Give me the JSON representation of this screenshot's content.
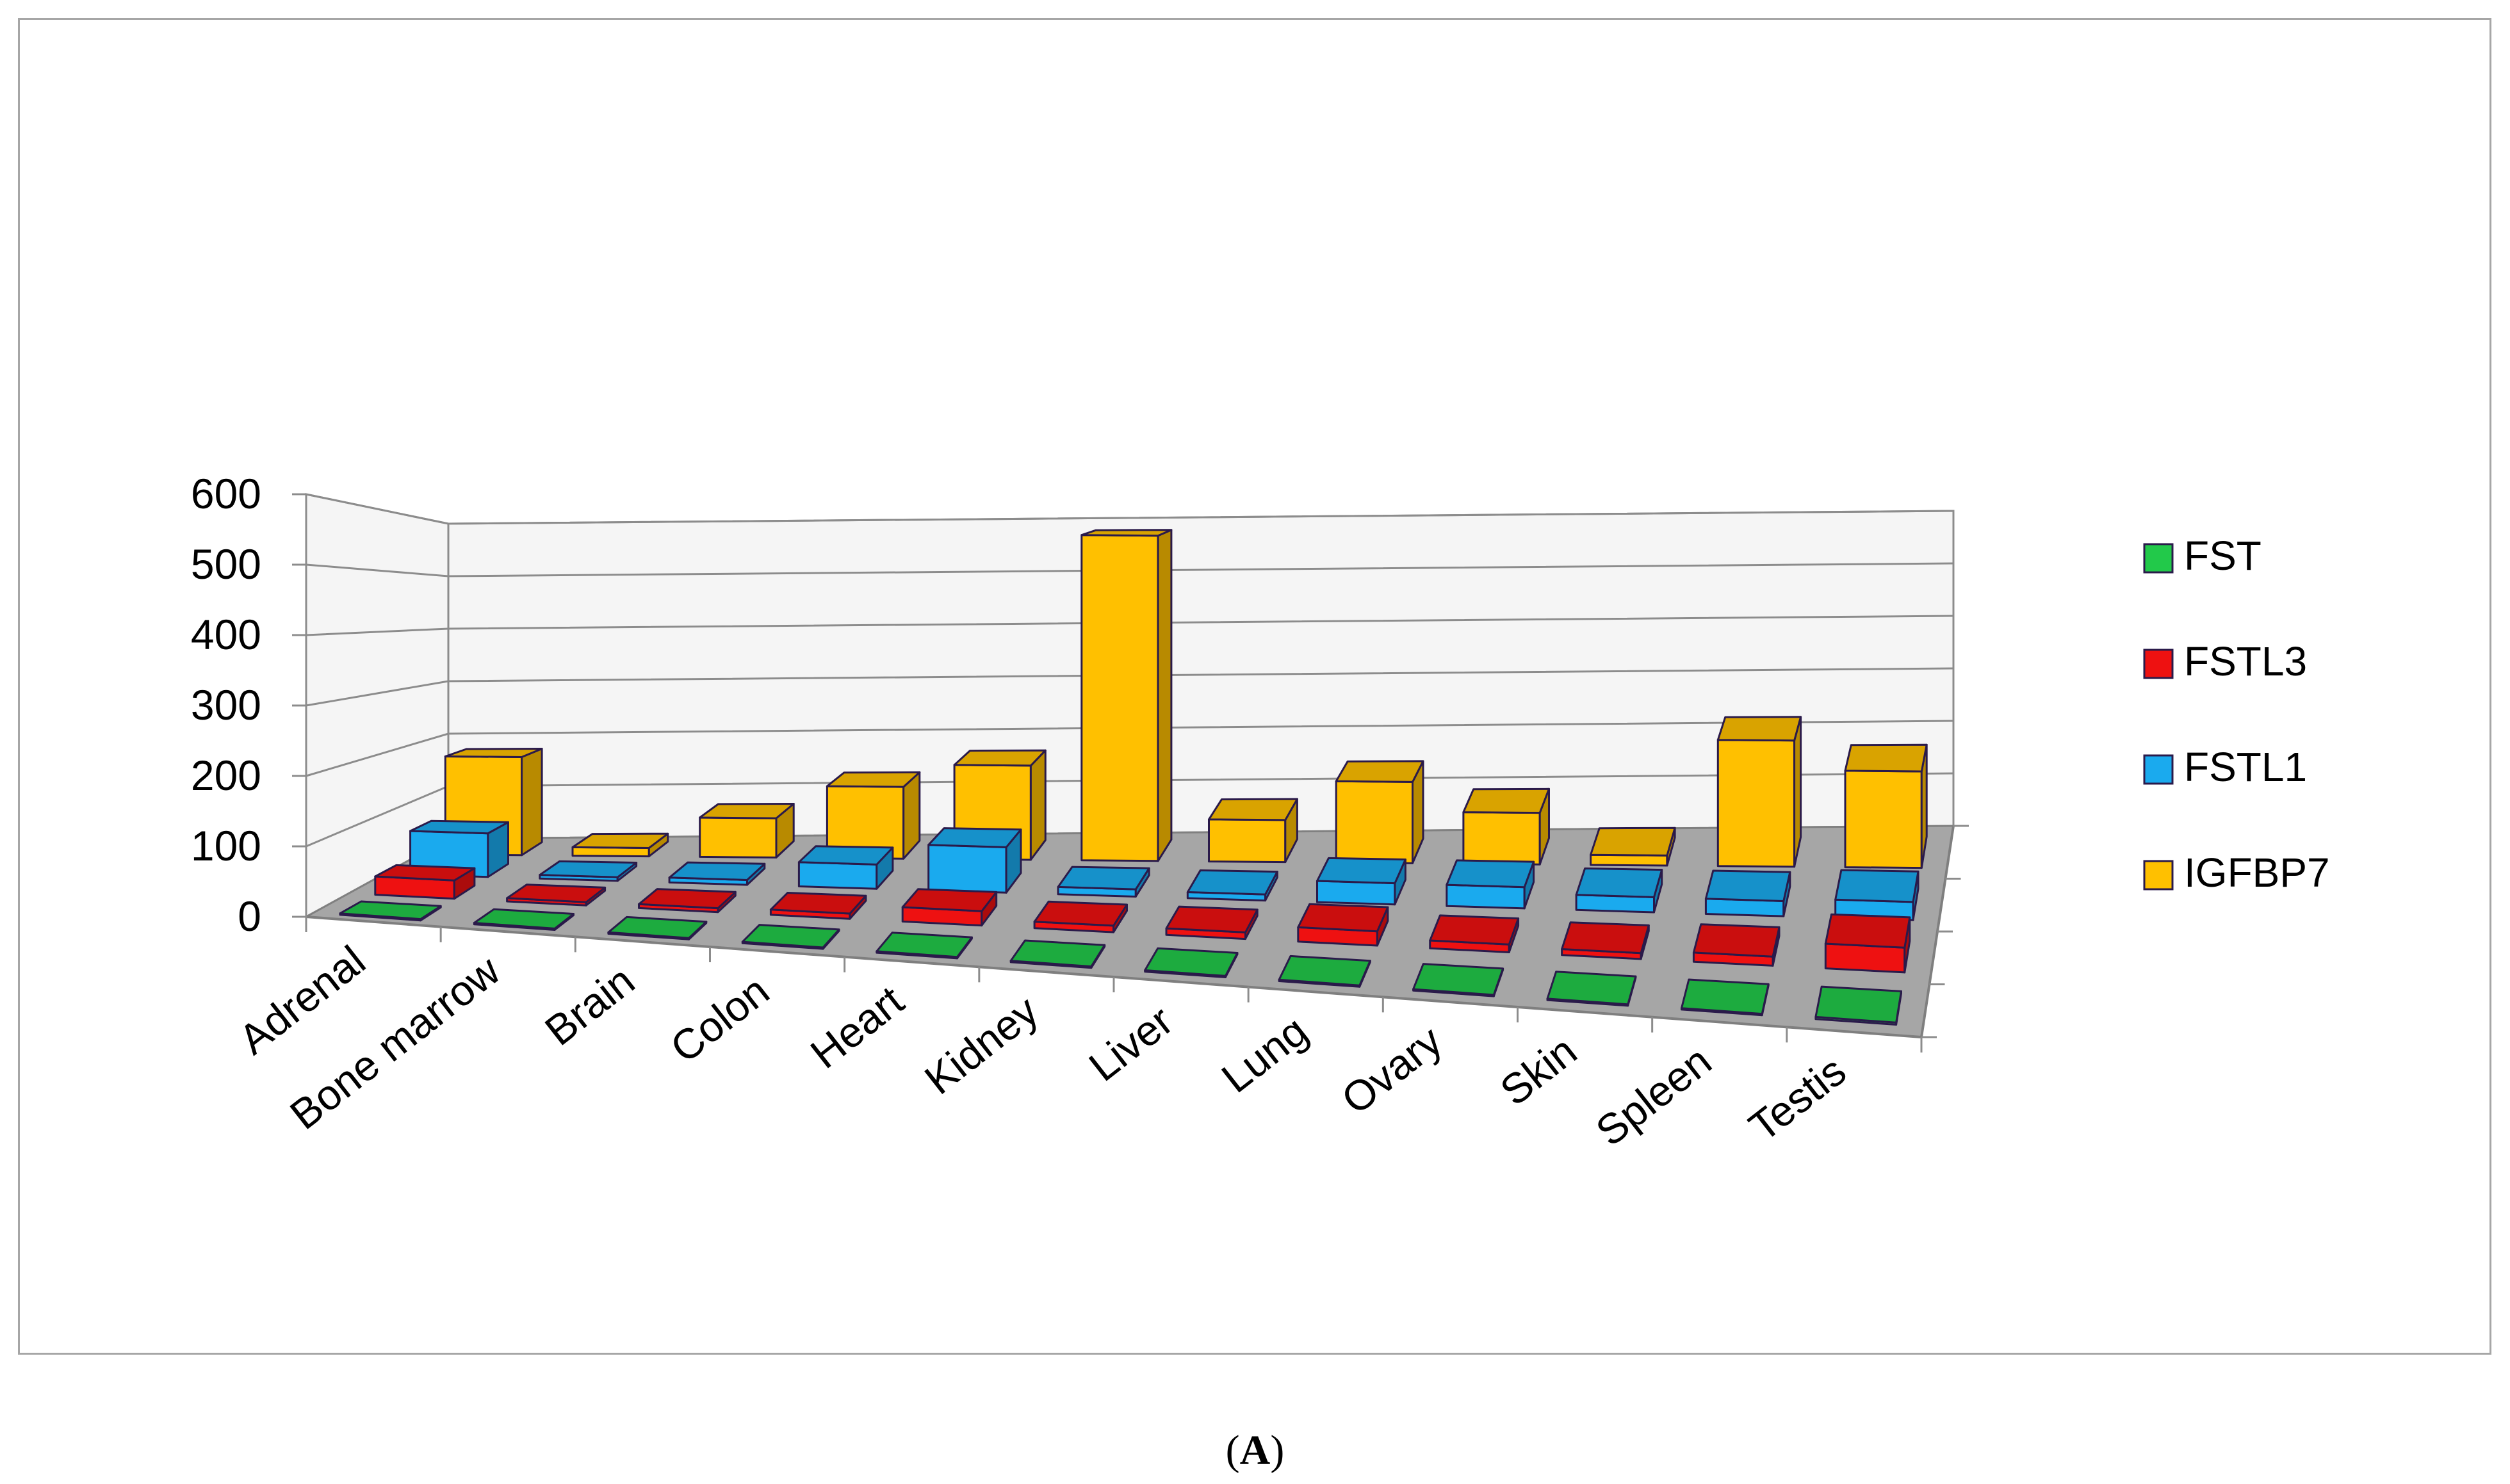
{
  "caption": {
    "open": "(",
    "letter": "A",
    "close": ")"
  },
  "chart_data": {
    "type": "bar",
    "style": "3d-column",
    "categories": [
      "Adrenal",
      "Bone marrow",
      "Brain",
      "Colon",
      "Heart",
      "Kidney",
      "Liver",
      "Lung",
      "Ovary",
      "Skin",
      "Spleen",
      "Testis"
    ],
    "series": [
      {
        "name": "FST",
        "color": "#22c94a",
        "values": [
          2,
          2,
          2,
          2,
          2,
          2,
          2,
          2,
          2,
          2,
          2,
          3
        ]
      },
      {
        "name": "FSTL3",
        "color": "#ee1111",
        "values": [
          28,
          5,
          6,
          8,
          22,
          10,
          10,
          22,
          12,
          9,
          14,
          38
        ]
      },
      {
        "name": "FSTL1",
        "color": "#1aaaee",
        "values": [
          72,
          6,
          8,
          40,
          75,
          12,
          10,
          35,
          35,
          25,
          25,
          30
        ]
      },
      {
        "name": "IGFBP7",
        "color": "#ffc000",
        "values": [
          175,
          15,
          70,
          128,
          168,
          580,
          75,
          145,
          92,
          18,
          225,
          172
        ]
      }
    ],
    "ylim": [
      0,
      600
    ],
    "yticks": [
      0,
      100,
      200,
      300,
      400,
      500,
      600
    ],
    "grid": true,
    "legend": "right",
    "title": "",
    "xlabel": "",
    "ylabel": ""
  }
}
